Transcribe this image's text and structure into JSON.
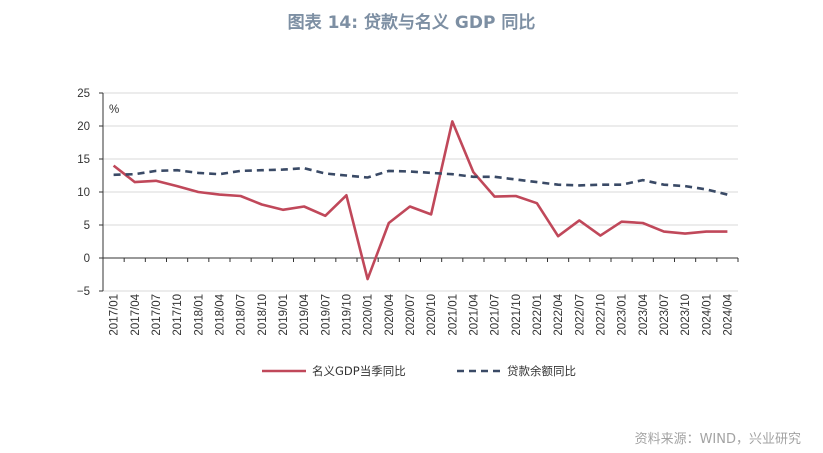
{
  "title": "图表 14: 贷款与名义 GDP 同比",
  "source": "资料来源：WIND，兴业研究",
  "chart_data": {
    "type": "line",
    "title": "图表 14: 贷款与名义 GDP 同比",
    "unit_label": "%",
    "ylim": [
      -5,
      25
    ],
    "yticks": [
      -5,
      0,
      5,
      10,
      15,
      20,
      25
    ],
    "x": [
      "2017/01",
      "2017/04",
      "2017/07",
      "2017/10",
      "2018/01",
      "2018/04",
      "2018/07",
      "2018/10",
      "2019/01",
      "2019/04",
      "2019/07",
      "2019/10",
      "2020/01",
      "2020/04",
      "2020/07",
      "2020/10",
      "2021/01",
      "2021/04",
      "2021/07",
      "2021/10",
      "2022/01",
      "2022/04",
      "2022/07",
      "2022/10",
      "2023/01",
      "2023/04",
      "2023/07",
      "2023/10",
      "2024/01",
      "2024/04"
    ],
    "grid": "horizontal",
    "legend_position": "bottom",
    "series": [
      {
        "name": "名义GDP当季同比",
        "color": "#c0485a",
        "style": "solid",
        "x": [
          "2017/01",
          "2017/04",
          "2017/07",
          "2017/10",
          "2018/01",
          "2018/04",
          "2018/07",
          "2018/10",
          "2019/01",
          "2019/04",
          "2019/07",
          "2019/10",
          "2020/01",
          "2020/04",
          "2020/07",
          "2020/10",
          "2021/01",
          "2021/04",
          "2021/07",
          "2021/10",
          "2022/01",
          "2022/04",
          "2022/07",
          "2022/10",
          "2023/01",
          "2023/04",
          "2023/07",
          "2023/10",
          "2024/01",
          "2024/04"
        ],
        "values": [
          14.0,
          11.5,
          11.7,
          10.9,
          10.0,
          9.6,
          9.4,
          8.1,
          7.3,
          7.8,
          6.4,
          9.5,
          -3.2,
          5.3,
          7.8,
          6.6,
          20.7,
          13.0,
          9.3,
          9.4,
          8.3,
          3.3,
          5.7,
          3.4,
          5.5,
          5.3,
          4.0,
          3.7,
          4.0,
          4.0
        ]
      },
      {
        "name": "贷款余额同比",
        "color": "#3a4a66",
        "style": "dashed",
        "x": [
          "2017/01",
          "2017/04",
          "2017/07",
          "2017/10",
          "2018/01",
          "2018/04",
          "2018/07",
          "2018/10",
          "2019/01",
          "2019/04",
          "2019/07",
          "2019/10",
          "2020/01",
          "2020/04",
          "2020/07",
          "2020/10",
          "2021/01",
          "2021/04",
          "2021/07",
          "2021/10",
          "2022/01",
          "2022/04",
          "2022/07",
          "2022/10",
          "2023/01",
          "2023/04",
          "2023/07",
          "2023/10",
          "2024/01",
          "2024/04"
        ],
        "values": [
          12.6,
          12.7,
          13.2,
          13.3,
          12.9,
          12.7,
          13.2,
          13.3,
          13.4,
          13.6,
          12.8,
          12.5,
          12.2,
          13.2,
          13.1,
          12.9,
          12.7,
          12.3,
          12.3,
          11.9,
          11.5,
          11.1,
          11.0,
          11.1,
          11.1,
          11.8,
          11.1,
          10.9,
          10.4,
          9.6
        ]
      }
    ]
  }
}
